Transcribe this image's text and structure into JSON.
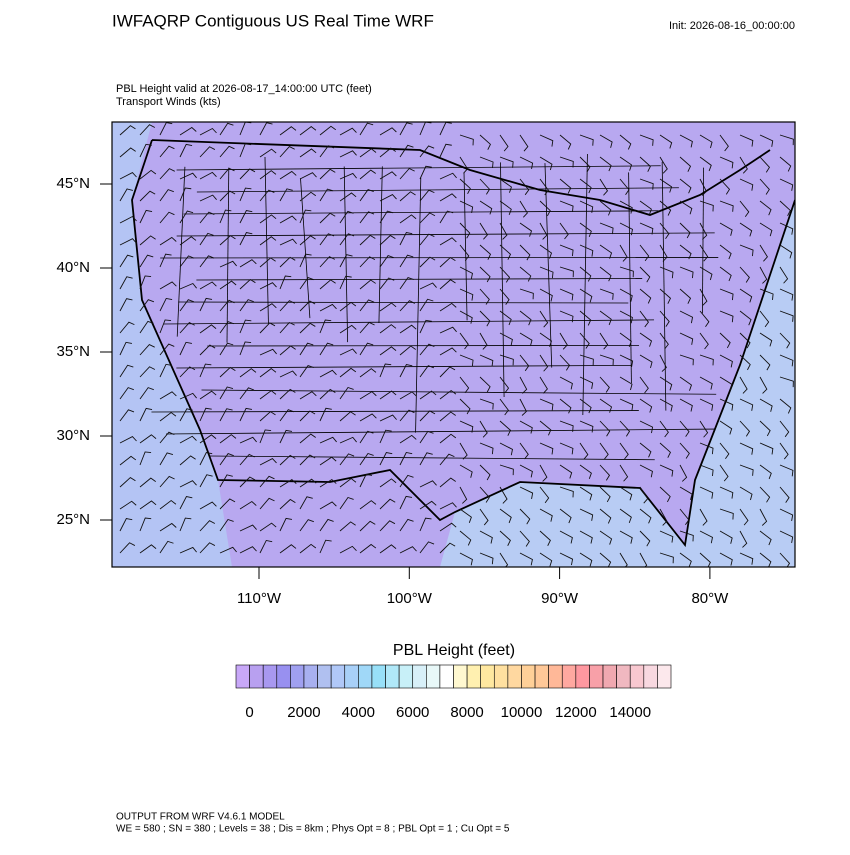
{
  "header": {
    "title": "IWFAQRP Contiguous US Real Time WRF",
    "init": "Init: 2026-08-16_00:00:00",
    "subtitle": [
      "PBL Height valid at 2026-08-17_14:00:00 UTC   (feet)",
      "Transport Winds   (kts)"
    ]
  },
  "map": {
    "lat_labels": [
      "45°N",
      "40°N",
      "35°N",
      "30°N",
      "25°N"
    ],
    "lon_labels": [
      "110°W",
      "100°W",
      "90°W",
      "80°W"
    ]
  },
  "colorbar": {
    "title": "PBL Height  (feet)",
    "labels": [
      "0",
      "2000",
      "4000",
      "6000",
      "8000",
      "10000",
      "12000",
      "14000"
    ],
    "colors": [
      "#c8a8f8",
      "#b8a0f0",
      "#a898f0",
      "#9890f0",
      "#a0a0f0",
      "#a8b0f0",
      "#b0c0f0",
      "#b0c8f8",
      "#a8d0f8",
      "#a0d8f8",
      "#98e0f8",
      "#b0e8f8",
      "#c8f0f8",
      "#d8f0f8",
      "#e8f8f8",
      "#ffffff",
      "#fff8d0",
      "#fff0b0",
      "#ffe8a0",
      "#ffe0a0",
      "#ffd8a0",
      "#ffd098",
      "#ffc898",
      "#ffb898",
      "#ffa8a0",
      "#ff98a0",
      "#f8a0a8",
      "#f0a8b0",
      "#f0b8c0",
      "#f8c8d0",
      "#f8d8e0",
      "#fce8ec"
    ]
  },
  "footer": [
    "OUTPUT FROM WRF V4.6.1 MODEL",
    "WE = 580 ; SN = 380 ; Levels = 38 ; Dis = 8km ; Phys Opt = 8 ; PBL Opt = 1 ; Cu Opt = 5"
  ]
}
